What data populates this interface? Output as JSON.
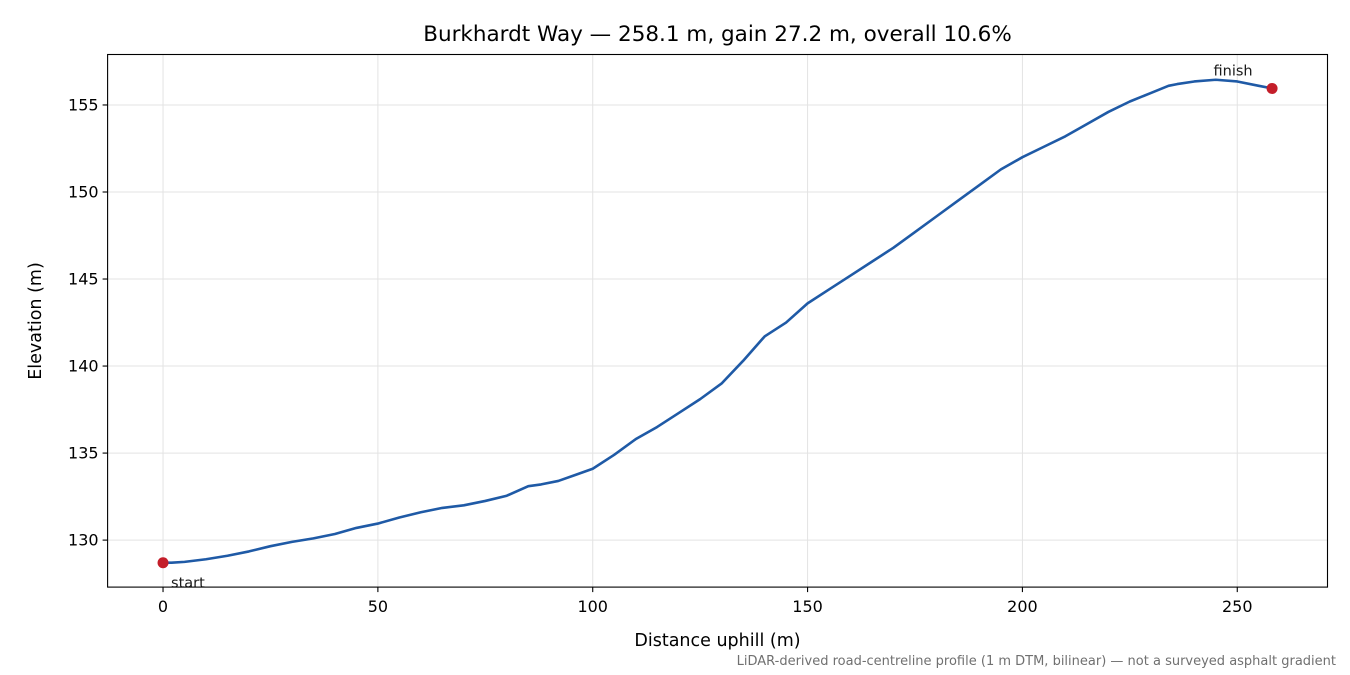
{
  "chart_data": {
    "type": "line",
    "title": "Burkhardt Way — 258.1 m, gain 27.2 m, overall 10.6%",
    "xlabel": "Distance uphill (m)",
    "ylabel": "Elevation (m)",
    "xlim": [
      -12.9,
      271.0
    ],
    "ylim": [
      127.3,
      157.9
    ],
    "xticks": [
      0,
      50,
      100,
      150,
      200,
      250
    ],
    "yticks": [
      130,
      135,
      140,
      145,
      150,
      155
    ],
    "grid": true,
    "footnote": "LiDAR-derived road-centreline profile (1 m DTM, bilinear) — not a surveyed asphalt gradient",
    "line_color": "#1f5aa6",
    "marker_color": "#c41e2a",
    "series": [
      {
        "x": [
          0,
          2,
          5,
          10,
          15,
          20,
          25,
          30,
          35,
          40,
          45,
          50,
          55,
          60,
          65,
          70,
          75,
          80,
          85,
          88,
          92,
          96,
          100,
          105,
          110,
          115,
          120,
          125,
          130,
          135,
          140,
          145,
          150,
          155,
          160,
          165,
          170,
          175,
          180,
          185,
          190,
          195,
          200,
          205,
          210,
          215,
          220,
          225,
          230,
          234,
          236,
          240,
          245,
          250,
          255,
          258.1
        ],
        "y": [
          128.7,
          128.7,
          128.75,
          128.9,
          129.1,
          129.35,
          129.65,
          129.9,
          130.1,
          130.35,
          130.7,
          130.95,
          131.3,
          131.6,
          131.85,
          132.0,
          132.25,
          132.55,
          133.1,
          133.2,
          133.4,
          133.75,
          134.1,
          134.9,
          135.8,
          136.5,
          137.3,
          138.1,
          139.0,
          140.3,
          141.7,
          142.5,
          143.6,
          144.4,
          145.2,
          146.0,
          146.8,
          147.7,
          148.6,
          149.5,
          150.4,
          151.3,
          152.0,
          152.6,
          153.2,
          153.9,
          154.6,
          155.2,
          155.7,
          156.1,
          156.2,
          156.35,
          156.45,
          156.35,
          156.1,
          155.95
        ]
      }
    ],
    "annotations": [
      {
        "label": "start",
        "x": 0,
        "y": 128.7
      },
      {
        "label": "finish",
        "x": 258.1,
        "y": 155.95
      }
    ]
  }
}
